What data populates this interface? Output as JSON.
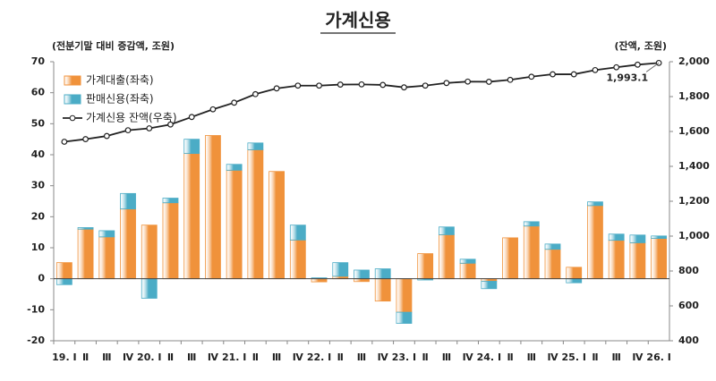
{
  "chart_data": {
    "type": "combo",
    "title": "가계신용",
    "y_label": "(전분기말 대비 증감액, 조원)",
    "y2_label": "(잔액, 조원)",
    "categories": [
      "19. Ⅰ",
      "Ⅱ",
      "Ⅲ",
      "Ⅳ",
      "20. Ⅰ",
      "Ⅱ",
      "Ⅲ",
      "Ⅳ",
      "21. Ⅰ",
      "Ⅱ",
      "Ⅲ",
      "Ⅳ",
      "22. Ⅰ",
      "Ⅱ",
      "Ⅲ",
      "Ⅳ",
      "23. Ⅰ",
      "Ⅱ",
      "Ⅲ",
      "Ⅳ",
      "24. Ⅰ",
      "Ⅱ",
      "Ⅲ",
      "Ⅳ",
      "25. Ⅰ",
      "Ⅱ",
      "Ⅲ",
      "Ⅳ",
      "26. Ⅰ"
    ],
    "series": [
      {
        "name": "가계대출(좌축)",
        "type": "bar",
        "color": "#f0923b",
        "values": [
          5.2,
          16.0,
          13.5,
          22.5,
          17.3,
          24.5,
          40.4,
          46.2,
          35.0,
          41.6,
          34.6,
          12.5,
          -1.0,
          0.8,
          -0.9,
          -7.2,
          -10.8,
          8.1,
          14.2,
          5.0,
          -0.8,
          13.2,
          17.0,
          9.5,
          3.7,
          23.6,
          12.4,
          11.6,
          13.0
        ]
      },
      {
        "name": "판매신용(좌축)",
        "type": "bar",
        "color": "#4bacc6",
        "values": [
          -1.9,
          0.5,
          2.0,
          5.0,
          -6.3,
          1.5,
          4.6,
          0,
          1.9,
          2.2,
          0,
          4.8,
          0.3,
          4.4,
          2.8,
          3.2,
          -3.6,
          -0.4,
          2.5,
          1.3,
          -2.4,
          0,
          1.4,
          1.7,
          -1.3,
          1.2,
          2.0,
          2.5,
          0.8
        ]
      },
      {
        "name": "가계신용 잔액(우축)",
        "type": "line",
        "axis": "y2",
        "color": "#222222",
        "values": [
          1541,
          1556,
          1574,
          1607,
          1618,
          1640,
          1683,
          1727,
          1765,
          1814,
          1847,
          1863,
          1863,
          1869,
          1870,
          1867,
          1853,
          1863,
          1878,
          1886,
          1885,
          1896,
          1914,
          1928,
          1928,
          1952,
          1968,
          1983,
          1993.1
        ],
        "value_labels": [
          null,
          null,
          null,
          null,
          null,
          null,
          null,
          null,
          null,
          null,
          null,
          null,
          null,
          null,
          null,
          null,
          null,
          null,
          null,
          null,
          null,
          null,
          null,
          null,
          null,
          null,
          null,
          null,
          "1,993.1"
        ]
      }
    ],
    "ylim": [
      -20,
      70
    ],
    "yticks": [
      -20,
      -10,
      0,
      10,
      20,
      30,
      40,
      50,
      60,
      70
    ],
    "y2lim": [
      400,
      2000
    ],
    "y2ticks": [
      400,
      600,
      800,
      {
        "value": 1000,
        "label": "1,000"
      },
      {
        "value": 1200,
        "label": "1,200"
      },
      {
        "value": 1400,
        "label": "1,400"
      },
      {
        "value": 1600,
        "label": "1,600"
      },
      {
        "value": 1800,
        "label": "1,800"
      },
      {
        "value": 2000,
        "label": "2,000"
      }
    ],
    "legend": "top-left"
  }
}
